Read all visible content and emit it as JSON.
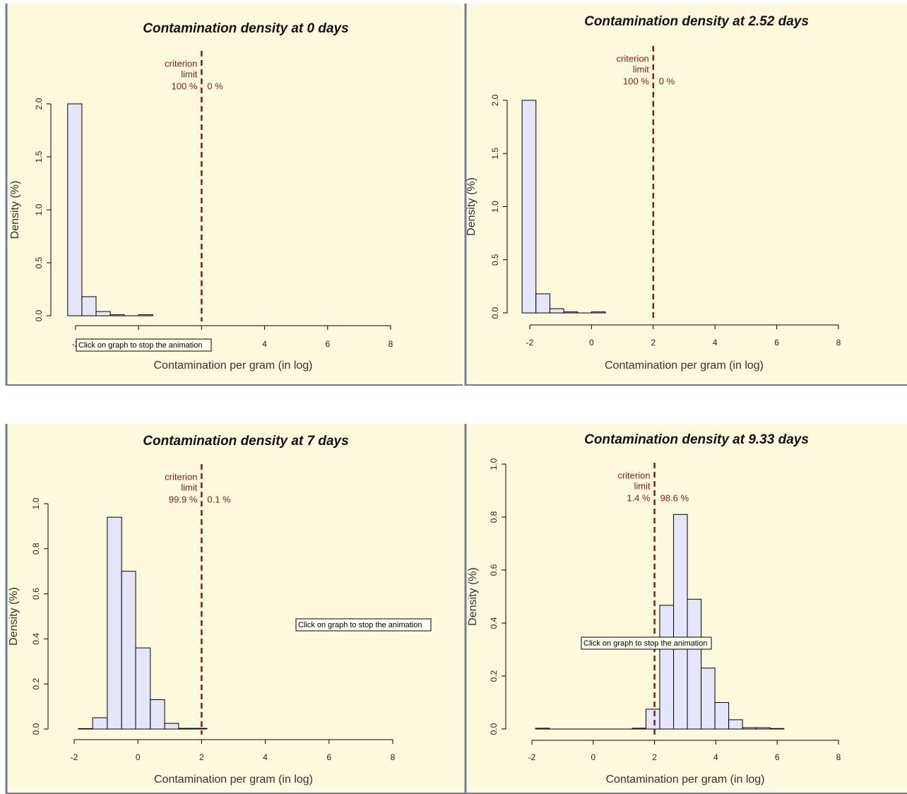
{
  "chart_data": [
    {
      "type": "histogram",
      "title": "Contamination density at 0 days",
      "x_label": "Contamination per gram (in log)",
      "y_label": "Density (%)",
      "bins": [
        -2.25,
        -1.8,
        -1.35,
        -0.9,
        -0.45,
        0,
        0.45
      ],
      "values": [
        2.0,
        0.18,
        0.04,
        0.01,
        0,
        0.01
      ],
      "color": "#e6e6fa",
      "xlim": [
        -2,
        8
      ],
      "xticks": [
        -2,
        0,
        2,
        4,
        6,
        8
      ],
      "ylim": [
        0,
        2
      ],
      "yticks": [
        {
          "value": 0,
          "label": "0.0"
        },
        0.5,
        {
          "value": 1,
          "label": "1.0"
        },
        1.5,
        {
          "value": 2,
          "label": "2.0"
        }
      ],
      "criterion_x": 2,
      "criterion_color": "#8b1a1a",
      "criterion_text": [
        "criterion",
        "limit"
      ],
      "below_label": "100 %",
      "above_label": "0 %",
      "tooltip": "Click on graph to stop the animation"
    },
    {
      "type": "histogram",
      "title": "Contamination density at 2.52 days",
      "x_label": "Contamination per gram (in log)",
      "y_label": "Density (%)",
      "bins": [
        -2.25,
        -1.8,
        -1.35,
        -0.9,
        -0.45,
        0,
        0.45
      ],
      "values": [
        2.0,
        0.18,
        0.04,
        0.01,
        0,
        0.01
      ],
      "color": "#e6e6fa",
      "xlim": [
        -2,
        8
      ],
      "xticks": [
        -2,
        0,
        2,
        4,
        6,
        8
      ],
      "ylim": [
        0,
        2
      ],
      "yticks": [
        {
          "value": 0,
          "label": "0.0"
        },
        0.5,
        {
          "value": 1,
          "label": "1.0"
        },
        1.5,
        {
          "value": 2,
          "label": "2.0"
        }
      ],
      "criterion_x": 2,
      "criterion_color": "#8b1a1a",
      "criterion_text": [
        "criterion",
        "limit"
      ],
      "below_label": "100 %",
      "above_label": "0 %"
    },
    {
      "type": "histogram",
      "title": "Contamination density at 7 days",
      "x_label": "Contamination per gram (in log)",
      "y_label": "Density (%)",
      "bins": [
        -1.87,
        -1.42,
        -0.96,
        -0.51,
        -0.07,
        0.39,
        0.84,
        1.28,
        1.72,
        2.17
      ],
      "values": [
        0.002,
        0.05,
        0.94,
        0.7,
        0.36,
        0.13,
        0.025,
        0.003,
        0.003
      ],
      "color": "#e6e6fa",
      "xlim": [
        -2,
        8
      ],
      "xticks": [
        -2,
        0,
        2,
        4,
        6,
        8
      ],
      "ylim": [
        0,
        1
      ],
      "yticks": [
        {
          "value": 0,
          "label": "0.0"
        },
        0.2,
        0.4,
        0.6,
        0.8,
        {
          "value": 1,
          "label": "1.0"
        }
      ],
      "criterion_x": 2,
      "criterion_color": "#8b1a1a",
      "criterion_text": [
        "criterion",
        "limit"
      ],
      "below_label": "99.9 %",
      "above_label": "0.1 %",
      "tooltip": "Click on graph to stop the animation"
    },
    {
      "type": "histogram",
      "title": "Contamination density at 9.33 days",
      "x_label": "Contamination per gram (in log)",
      "y_label": "Density (%)",
      "bins": [
        -1.88,
        -1.43,
        -0.98,
        -0.53,
        -0.08,
        0.37,
        0.82,
        1.27,
        1.72,
        2.17,
        2.62,
        3.07,
        3.52,
        3.97,
        4.42,
        4.87,
        5.32,
        5.77,
        6.22
      ],
      "values": [
        0.003,
        0,
        0,
        0,
        0,
        0,
        0,
        0.003,
        0.075,
        0.467,
        0.81,
        0.49,
        0.23,
        0.1,
        0.035,
        0.005,
        0.005,
        0.002
      ],
      "color": "#e6e6fa",
      "xlim": [
        -2,
        8
      ],
      "xticks": [
        -2,
        0,
        2,
        4,
        6,
        8
      ],
      "ylim": [
        0,
        1
      ],
      "yticks": [
        {
          "value": 0,
          "label": "0.0"
        },
        0.2,
        0.4,
        0.6,
        0.8,
        {
          "value": 1,
          "label": "1.0"
        }
      ],
      "criterion_x": 2,
      "criterion_color": "#8b1a1a",
      "criterion_text": [
        "criterion",
        "limit"
      ],
      "below_label": "1.4 %",
      "above_label": "98.6 %",
      "tooltip": "Click on graph to stop the animation"
    }
  ]
}
